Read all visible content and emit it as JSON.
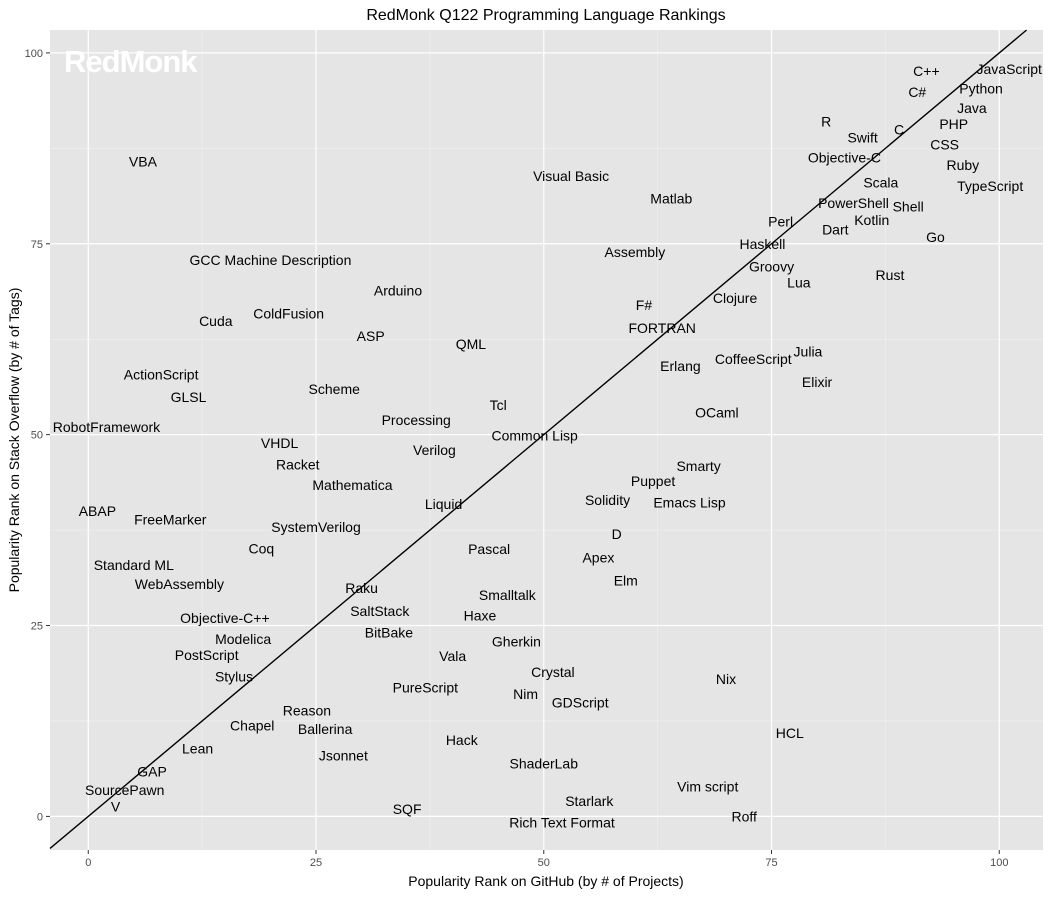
{
  "chart_data": {
    "type": "scatter",
    "title": "RedMonk Q122 Programming Language Rankings",
    "xlabel": "Popularity Rank on GitHub (by # of Projects)",
    "ylabel": "Popularity Rank on Stack Overflow (by # of Tags)",
    "xlim": [
      -4.2,
      104.8
    ],
    "ylim": [
      -4.4,
      103
    ],
    "xticks": [
      0,
      25,
      50,
      75,
      100
    ],
    "yticks": [
      0,
      25,
      50,
      75,
      100
    ],
    "xtick_labels": [
      "0",
      "25",
      "50",
      "75",
      "100"
    ],
    "ytick_labels": [
      "0",
      "25",
      "50",
      "75",
      "100"
    ],
    "grid": true,
    "reference_line": "y = x",
    "watermark": "RedMonk",
    "colors": {
      "panel": "#e5e5e5",
      "grid": "#ffffff",
      "text": "#000000",
      "line": "#000000"
    },
    "points": [
      {
        "label": "JavaScript",
        "x": 101.6,
        "y": 97.9
      },
      {
        "label": "Python",
        "x": 98,
        "y": 96.9
      },
      {
        "label": "Java",
        "x": 97,
        "y": 95.9
      },
      {
        "label": "PHP",
        "x": 95,
        "y": 93.8
      },
      {
        "label": "C#",
        "x": 91,
        "y": 94.9
      },
      {
        "label": "C++",
        "x": 92,
        "y": 92.9
      },
      {
        "label": "CSS",
        "x": 94,
        "y": 91.9
      },
      {
        "label": "C",
        "x": 89,
        "y": 90
      },
      {
        "label": "R",
        "x": 81,
        "y": 91
      },
      {
        "label": "Swift",
        "x": 85,
        "y": 88.9
      },
      {
        "label": "Objective-C",
        "x": 83,
        "y": 87.9
      },
      {
        "label": "Ruby",
        "x": 96,
        "y": 86.9
      },
      {
        "label": "TypeScript",
        "x": 99,
        "y": 84.9
      },
      {
        "label": "Scala",
        "x": 87,
        "y": 83
      },
      {
        "label": "PowerShell",
        "x": 84,
        "y": 81.9
      },
      {
        "label": "Shell",
        "x": 90,
        "y": 79.9
      },
      {
        "label": "Kotlin",
        "x": 86,
        "y": 78.9
      },
      {
        "label": "Perl",
        "x": 76,
        "y": 77.9
      },
      {
        "label": "Dart",
        "x": 82,
        "y": 76.9
      },
      {
        "label": "Go",
        "x": 93,
        "y": 75.9
      },
      {
        "label": "Haskell",
        "x": 74,
        "y": 75
      },
      {
        "label": "Groovy",
        "x": 75,
        "y": 72
      },
      {
        "label": "Lua",
        "x": 78,
        "y": 69.9
      },
      {
        "label": "Rust",
        "x": 88,
        "y": 70.9
      },
      {
        "label": "Clojure",
        "x": 71,
        "y": 67.9
      },
      {
        "label": "F#",
        "x": 61,
        "y": 67
      },
      {
        "label": "FORTRAN",
        "x": 63,
        "y": 64
      },
      {
        "label": "Assembly",
        "x": 60,
        "y": 73.9
      },
      {
        "label": "Matlab",
        "x": 64,
        "y": 80.9
      },
      {
        "label": "Visual Basic",
        "x": 53,
        "y": 83.9
      },
      {
        "label": "VBA",
        "x": 6,
        "y": 85.8
      },
      {
        "label": "GCC Machine Description",
        "x": 20,
        "y": 72.9
      },
      {
        "label": "Arduino",
        "x": 34,
        "y": 68.9
      },
      {
        "label": "Cuda",
        "x": 14,
        "y": 64.9
      },
      {
        "label": "ColdFusion",
        "x": 22,
        "y": 65.9
      },
      {
        "label": "ASP",
        "x": 31,
        "y": 62.9
      },
      {
        "label": "QML",
        "x": 42,
        "y": 61.9
      },
      {
        "label": "Julia",
        "x": 79,
        "y": 60.9
      },
      {
        "label": "CoffeeScript",
        "x": 73,
        "y": 59.9
      },
      {
        "label": "Erlang",
        "x": 65,
        "y": 59
      },
      {
        "label": "Elixir",
        "x": 80,
        "y": 56.9
      },
      {
        "label": "ActionScript",
        "x": 8,
        "y": 57.9
      },
      {
        "label": "GLSL",
        "x": 11,
        "y": 54.9
      },
      {
        "label": "Scheme",
        "x": 27,
        "y": 56
      },
      {
        "label": "Tcl",
        "x": 45,
        "y": 53.9
      },
      {
        "label": "OCaml",
        "x": 69,
        "y": 52.9
      },
      {
        "label": "Processing",
        "x": 36,
        "y": 51.9
      },
      {
        "label": "RobotFramework",
        "x": 2,
        "y": 51
      },
      {
        "label": "Common Lisp",
        "x": 49,
        "y": 49.9
      },
      {
        "label": "VHDL",
        "x": 21,
        "y": 48.9
      },
      {
        "label": "Verilog",
        "x": 38,
        "y": 48
      },
      {
        "label": "Racket",
        "x": 23,
        "y": 46.9
      },
      {
        "label": "Mathematica",
        "x": 29,
        "y": 45
      },
      {
        "label": "Smarty",
        "x": 67,
        "y": 45.9
      },
      {
        "label": "Puppet",
        "x": 62,
        "y": 43.9
      },
      {
        "label": "Solidity",
        "x": 57,
        "y": 43
      },
      {
        "label": "Emacs Lisp",
        "x": 66,
        "y": 41.9
      },
      {
        "label": "ABAP",
        "x": 1,
        "y": 40
      },
      {
        "label": "FreeMarker",
        "x": 9,
        "y": 38.9
      },
      {
        "label": "Liquid",
        "x": 39,
        "y": 40.9
      },
      {
        "label": "SystemVerilog",
        "x": 25,
        "y": 37.9
      },
      {
        "label": "Coq",
        "x": 19,
        "y": 35.9
      },
      {
        "label": "D",
        "x": 58,
        "y": 37
      },
      {
        "label": "Pascal",
        "x": 44,
        "y": 35
      },
      {
        "label": "Apex",
        "x": 56,
        "y": 33.9
      },
      {
        "label": "Standard ML",
        "x": 5,
        "y": 32.9
      },
      {
        "label": "WebAssembly",
        "x": 10,
        "y": 32
      },
      {
        "label": "Elm",
        "x": 59,
        "y": 30.9
      },
      {
        "label": "Raku",
        "x": 30,
        "y": 29.9
      },
      {
        "label": "Smalltalk",
        "x": 46,
        "y": 29
      },
      {
        "label": "Haxe",
        "x": 43,
        "y": 27.9
      },
      {
        "label": "SaltStack",
        "x": 32,
        "y": 26.9
      },
      {
        "label": "Objective-C++",
        "x": 15,
        "y": 26
      },
      {
        "label": "BitBake",
        "x": 33,
        "y": 24.9
      },
      {
        "label": "Modelica",
        "x": 17,
        "y": 24
      },
      {
        "label": "Gherkin",
        "x": 47,
        "y": 22.9
      },
      {
        "label": "PostScript",
        "x": 13,
        "y": 21.9
      },
      {
        "label": "Vala",
        "x": 40,
        "y": 21
      },
      {
        "label": "Stylus",
        "x": 16,
        "y": 19.9
      },
      {
        "label": "Crystal",
        "x": 51,
        "y": 18.9
      },
      {
        "label": "Nix",
        "x": 70,
        "y": 18
      },
      {
        "label": "PureScript",
        "x": 37,
        "y": 16.9
      },
      {
        "label": "Nim",
        "x": 48,
        "y": 16
      },
      {
        "label": "GDScript",
        "x": 54,
        "y": 14.9
      },
      {
        "label": "Reason",
        "x": 24,
        "y": 13.9
      },
      {
        "label": "Ballerina",
        "x": 26,
        "y": 13
      },
      {
        "label": "Chapel",
        "x": 18,
        "y": 11.9
      },
      {
        "label": "HCL",
        "x": 77,
        "y": 10.9
      },
      {
        "label": "Hack",
        "x": 41,
        "y": 10
      },
      {
        "label": "Lean",
        "x": 12,
        "y": 8.9
      },
      {
        "label": "Jsonnet",
        "x": 28,
        "y": 8
      },
      {
        "label": "ShaderLab",
        "x": 50,
        "y": 6.9
      },
      {
        "label": "GAP",
        "x": 7,
        "y": 5.9
      },
      {
        "label": "SourcePawn",
        "x": 4,
        "y": 5
      },
      {
        "label": "Vim script",
        "x": 68,
        "y": 3.9
      },
      {
        "label": "V",
        "x": 3,
        "y": 2.9
      },
      {
        "label": "Starlark",
        "x": 55,
        "y": 2
      },
      {
        "label": "SQF",
        "x": 35,
        "y": 1
      },
      {
        "label": "Rich Text Format",
        "x": 52,
        "y": 0
      },
      {
        "label": "Roff",
        "x": 72,
        "y": 0
      }
    ]
  }
}
